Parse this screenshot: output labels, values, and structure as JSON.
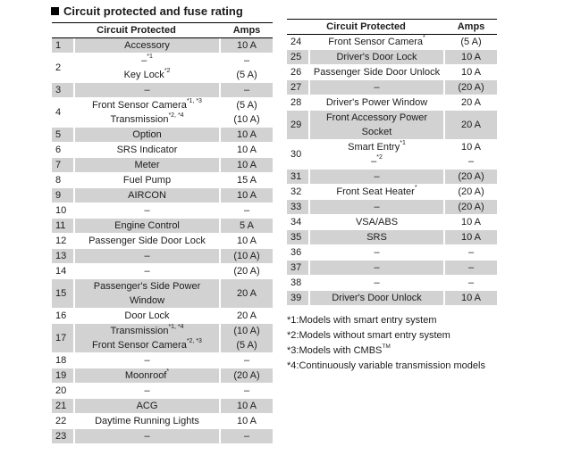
{
  "page_title": "Circuit protected and fuse rating",
  "colors": {
    "row_shade": "#d2d2d2",
    "text": "#1c1c1c"
  },
  "tables": {
    "left": {
      "header": {
        "circuit": "Circuit Protected",
        "amps": "Amps"
      },
      "rows": [
        {
          "num": "1",
          "lines": [
            {
              "text": "Accessory",
              "sup": "",
              "amps": "10 A"
            }
          ]
        },
        {
          "num": "2",
          "lines": [
            {
              "text": "–",
              "sup": "*1",
              "amps": "–"
            },
            {
              "text": "Key Lock",
              "sup": "*2",
              "amps": "(5 A)"
            }
          ]
        },
        {
          "num": "3",
          "lines": [
            {
              "text": "–",
              "sup": "",
              "amps": "–"
            }
          ]
        },
        {
          "num": "4",
          "lines": [
            {
              "text": "Front Sensor Camera",
              "sup": "*1, *3",
              "amps": "(5 A)"
            },
            {
              "text": "Transmission",
              "sup": "*2, *4",
              "amps": "(10 A)"
            }
          ]
        },
        {
          "num": "5",
          "lines": [
            {
              "text": "Option",
              "sup": "",
              "amps": "10 A"
            }
          ]
        },
        {
          "num": "6",
          "lines": [
            {
              "text": "SRS Indicator",
              "sup": "",
              "amps": "10 A"
            }
          ]
        },
        {
          "num": "7",
          "lines": [
            {
              "text": "Meter",
              "sup": "",
              "amps": "10 A"
            }
          ]
        },
        {
          "num": "8",
          "lines": [
            {
              "text": "Fuel Pump",
              "sup": "",
              "amps": "15 A"
            }
          ]
        },
        {
          "num": "9",
          "lines": [
            {
              "text": "AIRCON",
              "sup": "",
              "amps": "10 A"
            }
          ]
        },
        {
          "num": "10",
          "lines": [
            {
              "text": "–",
              "sup": "",
              "amps": "–"
            }
          ]
        },
        {
          "num": "11",
          "lines": [
            {
              "text": "Engine Control",
              "sup": "",
              "amps": "5 A"
            }
          ]
        },
        {
          "num": "12",
          "lines": [
            {
              "text": "Passenger Side Door Lock",
              "sup": "",
              "amps": "10 A"
            }
          ]
        },
        {
          "num": "13",
          "lines": [
            {
              "text": "–",
              "sup": "",
              "amps": "(10 A)"
            }
          ]
        },
        {
          "num": "14",
          "lines": [
            {
              "text": "–",
              "sup": "",
              "amps": "(20 A)"
            }
          ]
        },
        {
          "num": "15",
          "lines": [
            {
              "text": "Passenger's Side Power Window",
              "sup": "",
              "amps": "20 A",
              "wrap": true
            }
          ]
        },
        {
          "num": "16",
          "lines": [
            {
              "text": "Door Lock",
              "sup": "",
              "amps": "20 A"
            }
          ]
        },
        {
          "num": "17",
          "lines": [
            {
              "text": "Transmission",
              "sup": "*1, *4",
              "amps": "(10 A)"
            },
            {
              "text": "Front Sensor Camera",
              "sup": "*2, *3",
              "amps": "(5 A)"
            }
          ]
        },
        {
          "num": "18",
          "lines": [
            {
              "text": "–",
              "sup": "",
              "amps": "–"
            }
          ]
        },
        {
          "num": "19",
          "lines": [
            {
              "text": "Moonroof",
              "sup": "*",
              "amps": "(20 A)"
            }
          ]
        },
        {
          "num": "20",
          "lines": [
            {
              "text": "–",
              "sup": "",
              "amps": "–"
            }
          ]
        },
        {
          "num": "21",
          "lines": [
            {
              "text": "ACG",
              "sup": "",
              "amps": "10 A"
            }
          ]
        },
        {
          "num": "22",
          "lines": [
            {
              "text": "Daytime Running Lights",
              "sup": "",
              "amps": "10 A"
            }
          ]
        },
        {
          "num": "23",
          "lines": [
            {
              "text": "–",
              "sup": "",
              "amps": "–"
            }
          ]
        }
      ]
    },
    "right": {
      "header": {
        "circuit": "Circuit Protected",
        "amps": "Amps"
      },
      "rows": [
        {
          "num": "24",
          "lines": [
            {
              "text": "Front Sensor Camera",
              "sup": "*",
              "amps": "(5 A)"
            }
          ]
        },
        {
          "num": "25",
          "lines": [
            {
              "text": "Driver's Door Lock",
              "sup": "",
              "amps": "10 A"
            }
          ]
        },
        {
          "num": "26",
          "lines": [
            {
              "text": "Passenger Side Door Unlock",
              "sup": "",
              "amps": "10 A"
            }
          ]
        },
        {
          "num": "27",
          "lines": [
            {
              "text": "–",
              "sup": "",
              "amps": "(20 A)"
            }
          ]
        },
        {
          "num": "28",
          "lines": [
            {
              "text": "Driver's Power Window",
              "sup": "",
              "amps": "20 A"
            }
          ]
        },
        {
          "num": "29",
          "lines": [
            {
              "text": "Front Accessory Power Socket",
              "sup": "",
              "amps": "20 A",
              "wrap": true
            }
          ]
        },
        {
          "num": "30",
          "lines": [
            {
              "text": "Smart Entry",
              "sup": "*1",
              "amps": "10 A"
            },
            {
              "text": "–",
              "sup": "*2",
              "amps": "–"
            }
          ]
        },
        {
          "num": "31",
          "lines": [
            {
              "text": "–",
              "sup": "",
              "amps": "(20 A)"
            }
          ]
        },
        {
          "num": "32",
          "lines": [
            {
              "text": "Front Seat Heater",
              "sup": "*",
              "amps": "(20 A)"
            }
          ]
        },
        {
          "num": "33",
          "lines": [
            {
              "text": "–",
              "sup": "",
              "amps": "(20 A)"
            }
          ]
        },
        {
          "num": "34",
          "lines": [
            {
              "text": "VSA/ABS",
              "sup": "",
              "amps": "10 A"
            }
          ]
        },
        {
          "num": "35",
          "lines": [
            {
              "text": "SRS",
              "sup": "",
              "amps": "10 A"
            }
          ]
        },
        {
          "num": "36",
          "lines": [
            {
              "text": "–",
              "sup": "",
              "amps": "–"
            }
          ]
        },
        {
          "num": "37",
          "lines": [
            {
              "text": "–",
              "sup": "",
              "amps": "–"
            }
          ]
        },
        {
          "num": "38",
          "lines": [
            {
              "text": "–",
              "sup": "",
              "amps": "–"
            }
          ]
        },
        {
          "num": "39",
          "lines": [
            {
              "text": "Driver's Door Unlock",
              "sup": "",
              "amps": "10 A"
            }
          ]
        }
      ]
    }
  },
  "footnotes": [
    {
      "mark": "*1:",
      "text": "Models with smart entry system",
      "sup_after": ""
    },
    {
      "mark": "*2:",
      "text": "Models without smart entry system",
      "sup_after": ""
    },
    {
      "mark": "*3:",
      "text": "Models with CMBS",
      "sup_after": "TM"
    },
    {
      "mark": "*4:",
      "text": "Continuously variable transmission models",
      "sup_after": ""
    }
  ]
}
